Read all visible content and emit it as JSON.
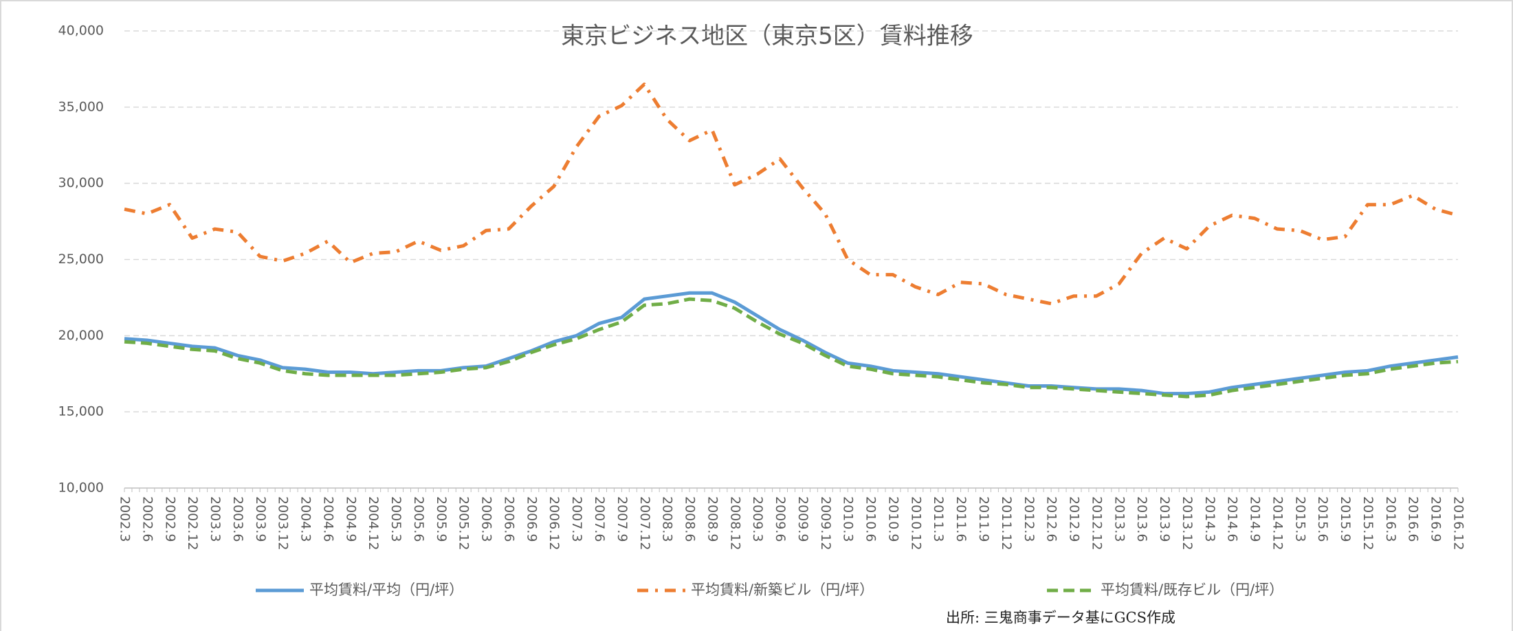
{
  "chart_data": {
    "type": "line",
    "title": "東京ビジネス地区（東京5区）賃料推移",
    "source": "出所: 三鬼商事データ基にGCS作成",
    "categories": [
      "2002.3",
      "2002.6",
      "2002.9",
      "2002.12",
      "2003.3",
      "2003.6",
      "2003.9",
      "2003.12",
      "2004.3",
      "2004.6",
      "2004.9",
      "2004.12",
      "2005.3",
      "2005.6",
      "2005.9",
      "2005.12",
      "2006.3",
      "2006.6",
      "2006.9",
      "2006.12",
      "2007.3",
      "2007.6",
      "2007.9",
      "2007.12",
      "2008.3",
      "2008.6",
      "2008.9",
      "2008.12",
      "2009.3",
      "2009.6",
      "2009.9",
      "2009.12",
      "2010.3",
      "2010.6",
      "2010.9",
      "2010.12",
      "2011.3",
      "2011.6",
      "2011.9",
      "2011.12",
      "2012.3",
      "2012.6",
      "2012.9",
      "2012.12",
      "2013.3",
      "2013.6",
      "2013.9",
      "2013.12",
      "2014.3",
      "2014.6",
      "2014.9",
      "2014.12",
      "2015.3",
      "2015.6",
      "2015.9",
      "2015.12",
      "2016.3",
      "2016.6",
      "2016.9",
      "2016.12"
    ],
    "series": [
      {
        "name": "平均賃料/平均（円/坪）",
        "color": "#5b9bd5",
        "dash": "solid",
        "values": [
          19800,
          19700,
          19500,
          19300,
          19200,
          18700,
          18400,
          17900,
          17800,
          17600,
          17600,
          17500,
          17600,
          17700,
          17700,
          17900,
          18000,
          18500,
          19000,
          19600,
          20000,
          20800,
          21200,
          22400,
          22600,
          22800,
          22800,
          22200,
          21300,
          20400,
          19700,
          18900,
          18200,
          18000,
          17700,
          17600,
          17500,
          17300,
          17100,
          16900,
          16700,
          16700,
          16600,
          16500,
          16500,
          16400,
          16200,
          16200,
          16300,
          16600,
          16800,
          17000,
          17200,
          17400,
          17600,
          17700,
          18000,
          18200,
          18400,
          18600
        ]
      },
      {
        "name": "平均賃料/新築ビル（円/坪）",
        "color": "#ed7d31",
        "dash": "dashdot",
        "values": [
          28300,
          28000,
          28600,
          26400,
          27000,
          26800,
          25200,
          24900,
          25400,
          26200,
          24800,
          25400,
          25500,
          26200,
          25600,
          25900,
          26900,
          27000,
          28500,
          29800,
          32400,
          34400,
          35100,
          36500,
          34200,
          32800,
          33500,
          29900,
          30600,
          31600,
          29700,
          28000,
          25000,
          24000,
          24000,
          23200,
          22700,
          23500,
          23400,
          22700,
          22400,
          22100,
          22600,
          22600,
          23400,
          25400,
          26400,
          25700,
          27200,
          27900,
          27700,
          27000,
          26900,
          26300,
          26500,
          28600,
          28600,
          29200,
          28300,
          27900
        ]
      },
      {
        "name": "平均賃料/既存ビル（円/坪）",
        "color": "#70ad47",
        "dash": "dash",
        "values": [
          19600,
          19500,
          19300,
          19100,
          19000,
          18500,
          18200,
          17700,
          17500,
          17400,
          17400,
          17400,
          17400,
          17500,
          17600,
          17800,
          17900,
          18300,
          18900,
          19400,
          19800,
          20400,
          20900,
          22000,
          22100,
          22400,
          22300,
          21800,
          20900,
          20100,
          19500,
          18700,
          18000,
          17800,
          17500,
          17400,
          17300,
          17100,
          16900,
          16800,
          16600,
          16600,
          16500,
          16400,
          16300,
          16200,
          16100,
          16000,
          16100,
          16400,
          16600,
          16800,
          17000,
          17200,
          17400,
          17500,
          17800,
          18000,
          18200,
          18300
        ]
      }
    ],
    "ylim": [
      10000,
      40000
    ],
    "yticks": [
      {
        "value": 10000,
        "label": "10,000"
      },
      {
        "value": 15000,
        "label": "15,000"
      },
      {
        "value": 20000,
        "label": "20,000"
      },
      {
        "value": 25000,
        "label": "25,000"
      },
      {
        "value": 30000,
        "label": "30,000"
      },
      {
        "value": 35000,
        "label": "35,000"
      },
      {
        "value": 40000,
        "label": "40,000"
      }
    ],
    "grid": true,
    "legend": "bottom"
  }
}
